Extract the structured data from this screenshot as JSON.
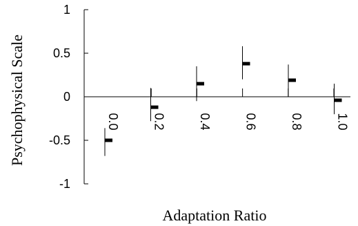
{
  "chart_data": {
    "type": "scatter",
    "title": "",
    "xlabel": "Adaptation Ratio",
    "ylabel": "Psychophysical Scale",
    "ylim": [
      -1,
      1
    ],
    "y_ticks": [
      "1",
      "0.5",
      "0",
      "-0.5",
      "-1"
    ],
    "y_tick_values": [
      1,
      0.5,
      0,
      -0.5,
      -1
    ],
    "x_tick_labels": [
      "0.0",
      "0.2",
      "0.4",
      "0.6",
      "0.8",
      "1.0"
    ],
    "x_tick_label_rotation_deg": 90,
    "grid": false,
    "legend": null,
    "points": [
      {
        "x": "0.0",
        "y": -0.5,
        "err_low": -0.68,
        "err_high": -0.36
      },
      {
        "x": "0.2",
        "y": -0.12,
        "err_low": -0.28,
        "err_high": 0.1
      },
      {
        "x": "0.4",
        "y": 0.15,
        "err_low": -0.05,
        "err_high": 0.35
      },
      {
        "x": "0.6",
        "y": 0.38,
        "err_low": 0.2,
        "err_high": 0.58
      },
      {
        "x": "0.8",
        "y": 0.19,
        "err_low": 0.0,
        "err_high": 0.37
      },
      {
        "x": "1.0",
        "y": -0.04,
        "err_low": -0.2,
        "err_high": 0.15
      }
    ],
    "colors": {
      "marks": "#000000",
      "background": "#ffffff"
    }
  }
}
